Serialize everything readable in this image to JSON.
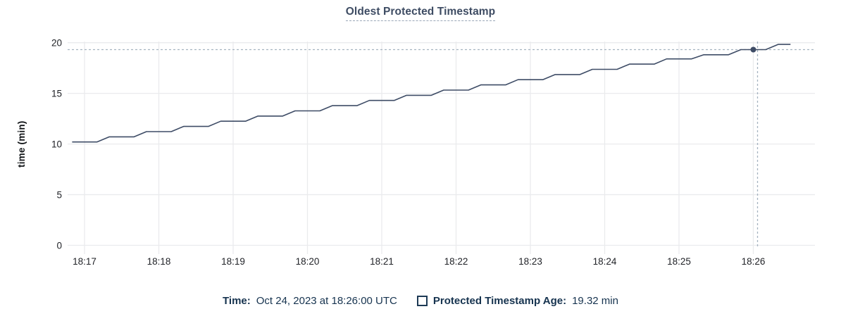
{
  "title": "Oldest Protected Timestamp",
  "chart_data": {
    "type": "line",
    "title": "Oldest Protected Timestamp",
    "xlabel": "",
    "ylabel": "time (min)",
    "ylim": [
      0,
      20
    ],
    "y_ticks": [
      0,
      5,
      10,
      15,
      20
    ],
    "x_ticks": [
      "18:17",
      "18:18",
      "18:19",
      "18:20",
      "18:21",
      "18:22",
      "18:23",
      "18:24",
      "18:25",
      "18:26"
    ],
    "grid": true,
    "legend_position": "bottom",
    "series": [
      {
        "name": "Protected Timestamp Age",
        "color": "#3e4c66",
        "unit": "min",
        "points": [
          [
            "18:16:50",
            10.2
          ],
          [
            "18:17:10",
            10.2
          ],
          [
            "18:17:20",
            10.71
          ],
          [
            "18:17:40",
            10.71
          ],
          [
            "18:17:50",
            11.22
          ],
          [
            "18:18:10",
            11.22
          ],
          [
            "18:18:20",
            11.74
          ],
          [
            "18:18:40",
            11.74
          ],
          [
            "18:18:50",
            12.25
          ],
          [
            "18:19:10",
            12.25
          ],
          [
            "18:19:20",
            12.76
          ],
          [
            "18:19:40",
            12.76
          ],
          [
            "18:19:50",
            13.27
          ],
          [
            "18:20:10",
            13.27
          ],
          [
            "18:20:20",
            13.79
          ],
          [
            "18:20:40",
            13.79
          ],
          [
            "18:20:50",
            14.3
          ],
          [
            "18:21:10",
            14.3
          ],
          [
            "18:21:20",
            14.81
          ],
          [
            "18:21:40",
            14.81
          ],
          [
            "18:21:50",
            15.32
          ],
          [
            "18:22:10",
            15.32
          ],
          [
            "18:22:20",
            15.84
          ],
          [
            "18:22:40",
            15.84
          ],
          [
            "18:22:50",
            16.35
          ],
          [
            "18:23:10",
            16.35
          ],
          [
            "18:23:20",
            16.86
          ],
          [
            "18:23:40",
            16.86
          ],
          [
            "18:23:50",
            17.37
          ],
          [
            "18:24:10",
            17.37
          ],
          [
            "18:24:20",
            17.89
          ],
          [
            "18:24:40",
            17.89
          ],
          [
            "18:24:50",
            18.4
          ],
          [
            "18:25:10",
            18.4
          ],
          [
            "18:25:20",
            18.81
          ],
          [
            "18:25:40",
            18.81
          ],
          [
            "18:25:50",
            19.32
          ],
          [
            "18:26:10",
            19.32
          ],
          [
            "18:26:20",
            19.83
          ],
          [
            "18:26:30",
            19.83
          ]
        ]
      }
    ],
    "hover_point": {
      "time": "18:26:00",
      "value": 19.32
    }
  },
  "tooltip": {
    "time_label": "Time:",
    "time_value": "Oct 24, 2023 at 18:26:00 UTC",
    "series_swatch": "square-outline",
    "series_label": "Protected Timestamp Age:",
    "series_value": "19.32 min"
  },
  "colors": {
    "line": "#3e4c66",
    "dot": "#3e4c66",
    "grid": "#eaebed",
    "crosshair": "#a5b3c0",
    "title_text": "#3e4c63",
    "axis_text": "#1f2126",
    "legend_text": "#16334f",
    "title_underline": "#9aa7b8"
  }
}
